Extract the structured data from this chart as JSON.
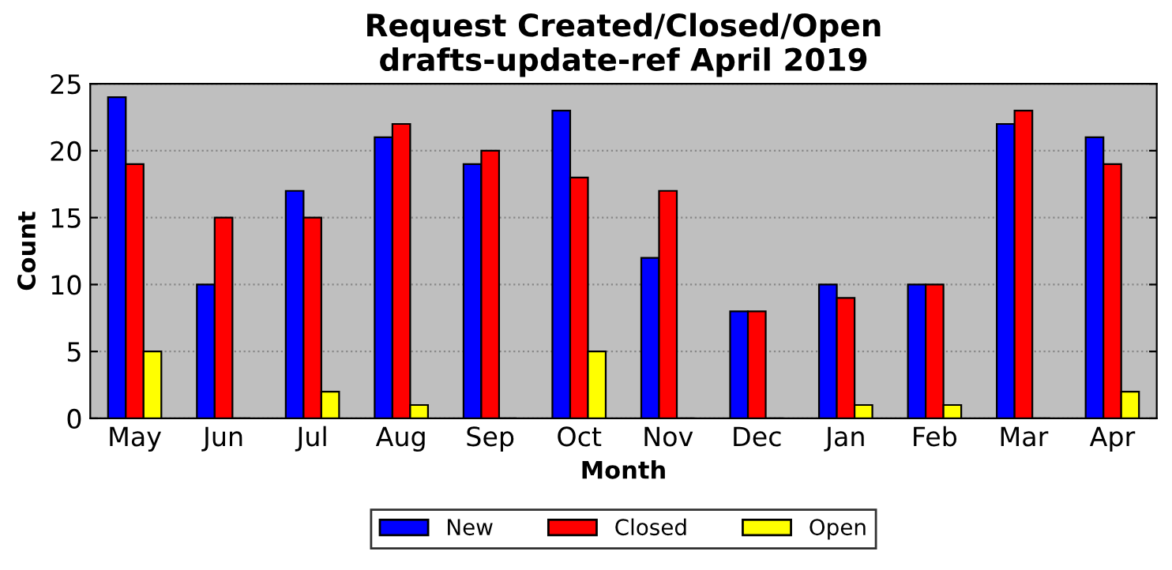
{
  "chart_data": {
    "type": "bar",
    "title": "Request Created/Closed/Open\ndrafts-update-ref April 2019",
    "xlabel": "Month",
    "ylabel": "Count",
    "categories": [
      "May",
      "Jun",
      "Jul",
      "Aug",
      "Sep",
      "Oct",
      "Nov",
      "Dec",
      "Jan",
      "Feb",
      "Mar",
      "Apr"
    ],
    "series": [
      {
        "name": "New",
        "color": "#0000ff",
        "values": [
          24,
          10,
          17,
          21,
          19,
          23,
          12,
          8,
          10,
          10,
          22,
          21
        ]
      },
      {
        "name": "Closed",
        "color": "#ff0000",
        "values": [
          19,
          15,
          15,
          22,
          20,
          18,
          17,
          8,
          9,
          10,
          23,
          19
        ]
      },
      {
        "name": "Open",
        "color": "#ffff00",
        "values": [
          5,
          0,
          2,
          1,
          0,
          5,
          0,
          0,
          1,
          1,
          0,
          2
        ]
      }
    ],
    "ylim": [
      0,
      25
    ],
    "yticks": [
      0,
      5,
      10,
      15,
      20,
      25
    ],
    "grid": "y",
    "legend": "bottom"
  }
}
